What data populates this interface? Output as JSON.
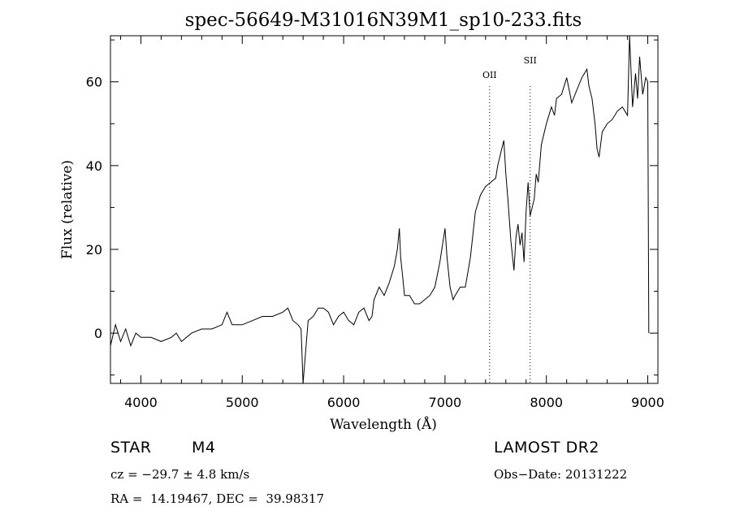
{
  "chart_data": {
    "type": "line",
    "title": "spec-56649-M31016N39M1_sp10-233.fits",
    "xlabel": "Wavelength (Å)",
    "ylabel": "Flux (relative)",
    "xlim": [
      3700,
      9100
    ],
    "ylim": [
      -12,
      71
    ],
    "xticks": [
      4000,
      5000,
      6000,
      7000,
      8000,
      9000
    ],
    "yticks": [
      0,
      20,
      40,
      60
    ],
    "grid": false,
    "legend": "none",
    "line_color": "#000000",
    "series": [
      {
        "x": [
          3700,
          3750,
          3800,
          3850,
          3900,
          3950,
          4000,
          4100,
          4200,
          4300,
          4350,
          4400,
          4500,
          4600,
          4700,
          4800,
          4850,
          4900,
          5000,
          5100,
          5200,
          5300,
          5400,
          5450,
          5500,
          5550,
          5580,
          5600,
          5650,
          5700,
          5750,
          5800,
          5850,
          5900,
          5950,
          6000,
          6050,
          6100,
          6150,
          6200,
          6250,
          6280,
          6300,
          6350,
          6400,
          6450,
          6500,
          6530,
          6550,
          6563,
          6580,
          6600,
          6650,
          6700,
          6750,
          6800,
          6850,
          6900,
          6950,
          7000,
          7020,
          7050,
          7080,
          7100,
          7150,
          7200,
          7250,
          7300,
          7350,
          7400,
          7450,
          7500,
          7520,
          7550,
          7580,
          7600,
          7620,
          7650,
          7680,
          7700,
          7720,
          7740,
          7760,
          7780,
          7800,
          7820,
          7840,
          7860,
          7880,
          7900,
          7920,
          7950,
          8000,
          8050,
          8080,
          8100,
          8150,
          8200,
          8250,
          8300,
          8350,
          8400,
          8420,
          8450,
          8480,
          8500,
          8520,
          8550,
          8600,
          8650,
          8700,
          8750,
          8800,
          8820,
          8850,
          8880,
          8900,
          8920,
          8950,
          8980,
          9000,
          9010
        ],
        "y": [
          -3,
          2,
          -2,
          1,
          -3,
          0,
          -1,
          -1,
          -2,
          -1,
          0,
          -2,
          0,
          1,
          1,
          2,
          5,
          2,
          2,
          3,
          4,
          4,
          5,
          6,
          3,
          2,
          1,
          -12,
          3,
          4,
          6,
          6,
          5,
          2,
          4,
          5,
          3,
          2,
          5,
          6,
          3,
          4,
          8,
          11,
          9,
          12,
          16,
          20,
          25,
          18,
          14,
          9,
          9,
          7,
          7,
          8,
          9,
          11,
          17,
          25,
          18,
          11,
          8,
          9,
          11,
          11,
          18,
          29,
          33,
          35,
          36,
          37,
          40,
          43,
          46,
          38,
          32,
          22,
          15,
          23,
          26,
          21,
          24,
          17,
          29,
          36,
          28,
          30,
          32,
          38,
          36,
          45,
          50,
          54,
          52,
          56,
          57,
          61,
          55,
          58,
          61,
          63,
          59,
          56,
          50,
          44,
          42,
          48,
          50,
          51,
          53,
          54,
          52,
          71,
          54,
          62,
          56,
          66,
          57,
          61,
          60,
          0
        ]
      }
    ],
    "annotations": [
      {
        "label": "OII",
        "x": 7440
      },
      {
        "label": "SII",
        "x": 7840
      }
    ]
  },
  "info": {
    "object_class": "STAR",
    "subclass": "M4",
    "survey": "LAMOST DR2",
    "cz": "cz = −29.7 ± 4.8 km/s",
    "obs_date": "Obs−Date: 20131222",
    "coords": "RA =  14.19467, DEC =  39.98317"
  }
}
